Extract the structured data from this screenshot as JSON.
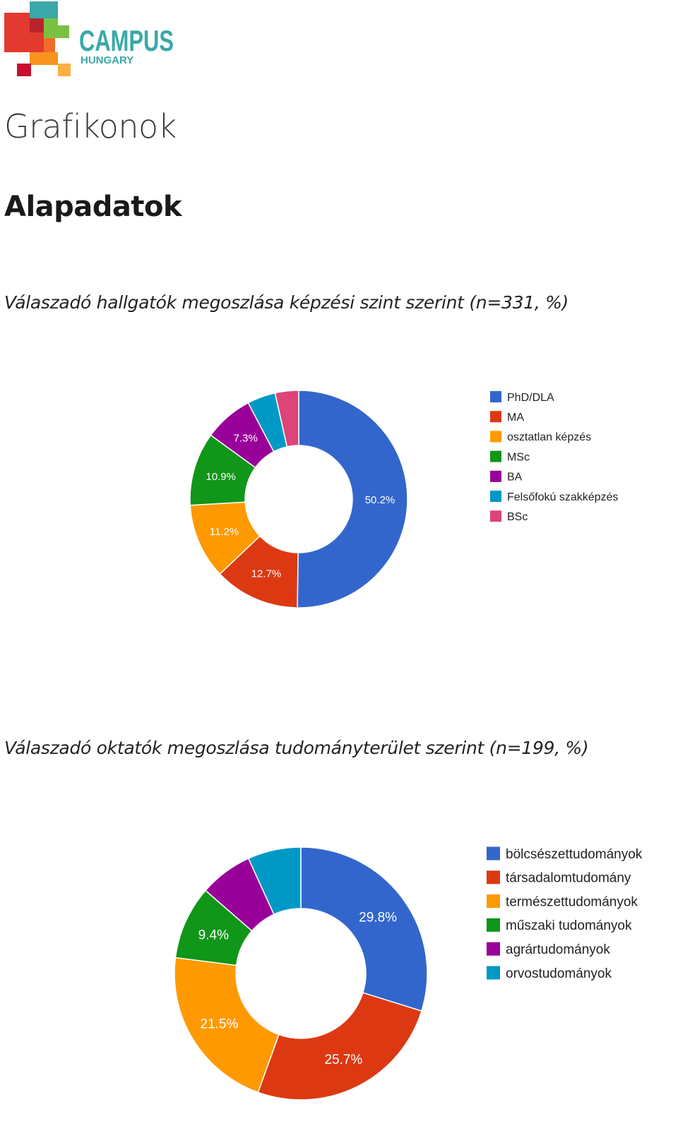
{
  "logo": {
    "name": "CAMPUS",
    "sub": "HUNGARY"
  },
  "page": {
    "title": "Grafikonok",
    "section": "Alapadatok"
  },
  "charts": [
    {
      "caption": "Válaszadó hallgatók megoszlása képzési szint szerint (n=331, %)"
    },
    {
      "caption": "Válaszadó oktatók megoszlása tudományterület szerint (n=199, %)"
    }
  ],
  "chart_data": [
    {
      "type": "pie",
      "subtype": "donut",
      "title": "Válaszadó hallgatók megoszlása képzési szint szerint (n=331, %)",
      "legend_position": "right",
      "slices": [
        {
          "name": "PhD/DLA",
          "value": 50.2,
          "label": "50.2%",
          "color": "#3366cc"
        },
        {
          "name": "MA",
          "value": 12.7,
          "label": "12.7%",
          "color": "#dc3912"
        },
        {
          "name": "osztatlan képzés",
          "value": 11.2,
          "label": "11.2%",
          "color": "#ff9900"
        },
        {
          "name": "MSc",
          "value": 10.9,
          "label": "10.9%",
          "color": "#109618"
        },
        {
          "name": "BA",
          "value": 7.3,
          "label": "7.3%",
          "color": "#990099"
        },
        {
          "name": "Felsőfokú szakképzés",
          "value": 4.2,
          "label": "",
          "color": "#0099c6"
        },
        {
          "name": "BSc",
          "value": 3.5,
          "label": "",
          "color": "#dd4477"
        }
      ]
    },
    {
      "type": "pie",
      "subtype": "donut",
      "title": "Válaszadó oktatók megoszlása tudományterület szerint (n=199, %)",
      "legend_position": "right",
      "slices": [
        {
          "name": "bölcsészettudományok",
          "value": 29.8,
          "label": "29.8%",
          "color": "#3366cc"
        },
        {
          "name": "társadalomtudomány",
          "value": 25.7,
          "label": "25.7%",
          "color": "#dc3912"
        },
        {
          "name": "természettudományok",
          "value": 21.5,
          "label": "21.5%",
          "color": "#ff9900"
        },
        {
          "name": "műszaki tudományok",
          "value": 9.4,
          "label": "9.4%",
          "color": "#109618"
        },
        {
          "name": "agrártudományok",
          "value": 6.8,
          "label": "",
          "color": "#990099"
        },
        {
          "name": "orvostudományok",
          "value": 6.8,
          "label": "",
          "color": "#0099c6"
        }
      ]
    }
  ]
}
